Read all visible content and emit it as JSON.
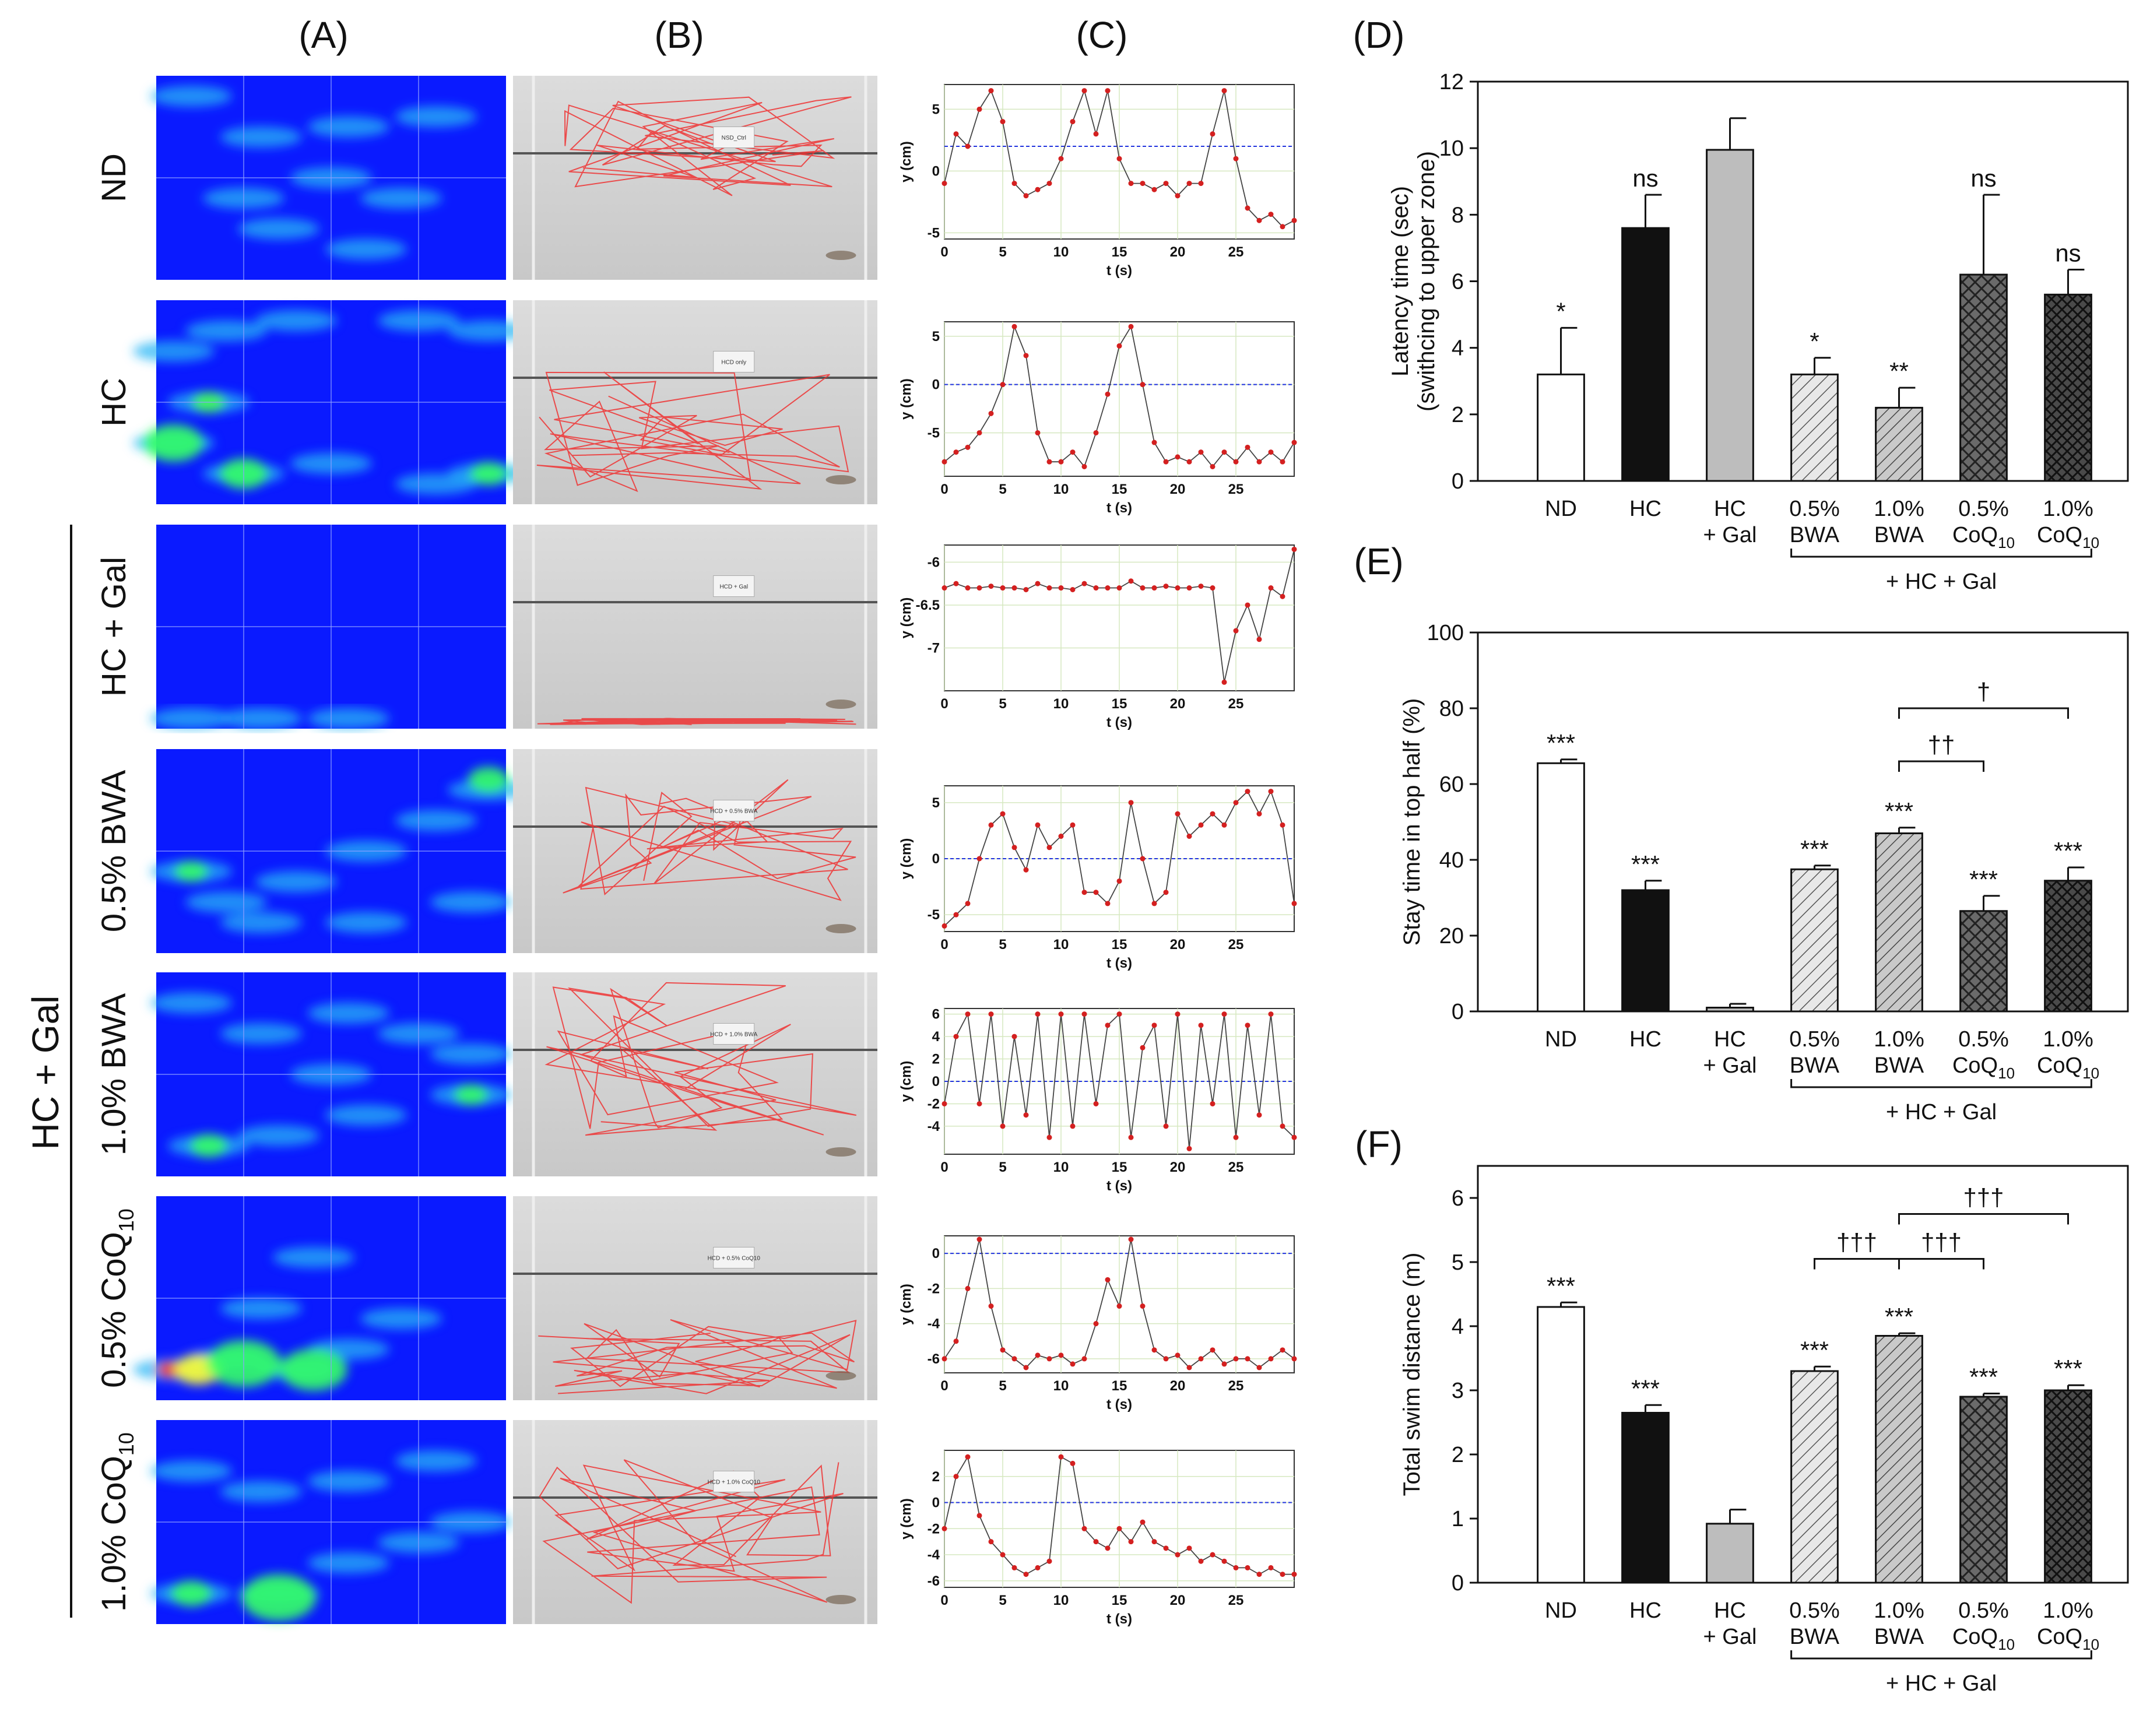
{
  "panel_labels": [
    "(A)",
    "(B)",
    "(C)",
    "(D)",
    "(E)",
    "(F)"
  ],
  "rows": [
    {
      "label": "ND",
      "sub": ""
    },
    {
      "label": "HC",
      "sub": ""
    },
    {
      "label": "HC + Gal",
      "sub": ""
    },
    {
      "label": "0.5% BWA",
      "sub": ""
    },
    {
      "label": "1.0% BWA",
      "sub": ""
    },
    {
      "label": "0.5% CoQ",
      "sub": "10"
    },
    {
      "label": "1.0% CoQ",
      "sub": "10"
    }
  ],
  "group_label": "HC + Gal",
  "tank_labels": [
    "NSD_Ctrl",
    "HCD only",
    "HCD + Gal",
    "HCD + 0.5% BWA",
    "HCD + 1.0% BWA",
    "HCD + 0.5% CoQ10",
    "HCD + 1.0% CoQ10"
  ],
  "trace_x_label": "t (s)",
  "trace_y_label": "y (cm)",
  "colors": {
    "heatmap_bg": "#0a1aff",
    "trace_point": "#d42020",
    "trace_ref": "#2233dd",
    "bar_nd": "#ffffff",
    "bar_hc": "#111111",
    "bar_hcgal": "#bdbdbd",
    "bar_bwa": "#e4e4e4",
    "bar_coq": "#5a5a5a"
  },
  "chart_data": [
    {
      "id": "D",
      "type": "bar",
      "ylabel": "Latency time (sec)",
      "ylabel2": "(swithcing to upper zone)",
      "ylim": [
        0,
        12
      ],
      "yticks": [
        0,
        2,
        4,
        6,
        8,
        10,
        12
      ],
      "categories": [
        "ND",
        "HC",
        "HC + Gal",
        "0.5% BWA",
        "1.0% BWA",
        "0.5% CoQ10",
        "1.0% CoQ10"
      ],
      "values": [
        3.2,
        7.6,
        9.95,
        3.2,
        2.2,
        6.2,
        5.6
      ],
      "errors": [
        1.4,
        1.0,
        0.95,
        0.5,
        0.6,
        2.4,
        0.75
      ],
      "significance": [
        "*",
        "ns",
        "",
        "*",
        "**",
        "ns",
        "ns"
      ],
      "group_bracket": "+ HC + Gal",
      "comparisons": []
    },
    {
      "id": "E",
      "type": "bar",
      "ylabel": "Stay time in top half (%)",
      "ylim": [
        0,
        100
      ],
      "yticks": [
        0,
        20,
        40,
        60,
        80,
        100
      ],
      "categories": [
        "ND",
        "HC",
        "HC + Gal",
        "0.5% BWA",
        "1.0% BWA",
        "0.5% CoQ10",
        "1.0% CoQ10"
      ],
      "values": [
        65.5,
        32,
        1,
        37.5,
        47,
        26.5,
        34.5
      ],
      "errors": [
        1,
        2.5,
        1,
        1,
        1.5,
        4,
        3.5
      ],
      "significance": [
        "***",
        "***",
        "",
        "***",
        "***",
        "***",
        "***"
      ],
      "group_bracket": "+ HC + Gal",
      "comparisons": [
        {
          "from": 4,
          "to": 6,
          "label": "†",
          "y": 80
        },
        {
          "from": 4,
          "to": 5,
          "label": "††",
          "y": 66
        }
      ]
    },
    {
      "id": "F",
      "type": "bar",
      "ylabel": "Total swim distance (m)",
      "ylim": [
        0,
        6.5
      ],
      "yticks": [
        0,
        1,
        2,
        3,
        4,
        5,
        6
      ],
      "categories": [
        "ND",
        "HC",
        "HC + Gal",
        "0.5% BWA",
        "1.0% BWA",
        "0.5% CoQ10",
        "1.0% CoQ10"
      ],
      "values": [
        4.3,
        2.65,
        0.92,
        3.3,
        3.85,
        2.9,
        3.0
      ],
      "errors": [
        0.07,
        0.12,
        0.22,
        0.07,
        0.04,
        0.05,
        0.08
      ],
      "significance": [
        "***",
        "***",
        "",
        "***",
        "***",
        "***",
        "***"
      ],
      "group_bracket": "+ HC + Gal",
      "comparisons": [
        {
          "from": 4,
          "to": 6,
          "label": "†††",
          "y": 5.75
        },
        {
          "from": 3,
          "to": 4,
          "label": "†††",
          "y": 5.05
        },
        {
          "from": 4,
          "to": 5,
          "label": "†††",
          "y": 5.05
        }
      ]
    },
    {
      "id": "C1",
      "type": "line",
      "xlabel": "t (s)",
      "ylabel": "y (cm)",
      "xlim": [
        0,
        30
      ],
      "ylim": [
        -5.5,
        7
      ],
      "xticks": [
        0,
        5,
        10,
        15,
        20,
        25
      ],
      "yticks": [
        -5,
        0,
        5
      ],
      "ref": 2,
      "x": [
        0,
        1,
        2,
        3,
        4,
        5,
        6,
        7,
        8,
        9,
        10,
        11,
        12,
        13,
        14,
        15,
        16,
        17,
        18,
        19,
        20,
        21,
        22,
        23,
        24,
        25,
        26,
        27,
        28,
        29,
        30
      ],
      "y": [
        -1,
        3,
        2,
        5,
        6.5,
        4,
        -1,
        -2,
        -1.5,
        -1,
        1,
        4,
        6.5,
        3,
        6.5,
        1,
        -1,
        -1,
        -1.5,
        -1,
        -2,
        -1,
        -1,
        3,
        6.5,
        1,
        -3,
        -4,
        -3.5,
        -4.5,
        -4
      ]
    },
    {
      "id": "C2",
      "type": "line",
      "xlabel": "t (s)",
      "ylabel": "y (cm)",
      "xlim": [
        0,
        30
      ],
      "ylim": [
        -9.5,
        6.5
      ],
      "xticks": [
        0,
        5,
        10,
        15,
        20,
        25
      ],
      "yticks": [
        -5,
        0,
        5
      ],
      "ref": 0,
      "x": [
        0,
        1,
        2,
        3,
        4,
        5,
        6,
        7,
        8,
        9,
        10,
        11,
        12,
        13,
        14,
        15,
        16,
        17,
        18,
        19,
        20,
        21,
        22,
        23,
        24,
        25,
        26,
        27,
        28,
        29,
        30
      ],
      "y": [
        -8,
        -7,
        -6.5,
        -5,
        -3,
        0,
        6,
        3,
        -5,
        -8,
        -8,
        -7,
        -8.5,
        -5,
        -1,
        4,
        6,
        0,
        -6,
        -8,
        -7.5,
        -8,
        -7,
        -8.5,
        -7,
        -8,
        -6.5,
        -8,
        -7,
        -8,
        -6
      ]
    },
    {
      "id": "C3",
      "type": "line",
      "xlabel": "t (s)",
      "ylabel": "y (cm)",
      "xlim": [
        0,
        30
      ],
      "ylim": [
        -7.5,
        -5.8
      ],
      "xticks": [
        0,
        5,
        10,
        15,
        20,
        25
      ],
      "yticks": [
        -7,
        -6.5,
        -6
      ],
      "ref": null,
      "x": [
        0,
        1,
        2,
        3,
        4,
        5,
        6,
        7,
        8,
        9,
        10,
        11,
        12,
        13,
        14,
        15,
        16,
        17,
        18,
        19,
        20,
        21,
        22,
        23,
        24,
        25,
        26,
        27,
        28,
        29,
        30
      ],
      "y": [
        -6.3,
        -6.25,
        -6.3,
        -6.3,
        -6.28,
        -6.3,
        -6.3,
        -6.32,
        -6.25,
        -6.3,
        -6.3,
        -6.32,
        -6.25,
        -6.3,
        -6.3,
        -6.3,
        -6.22,
        -6.3,
        -6.3,
        -6.28,
        -6.3,
        -6.3,
        -6.28,
        -6.3,
        -7.4,
        -6.8,
        -6.5,
        -6.9,
        -6.3,
        -6.4,
        -5.85
      ]
    },
    {
      "id": "C4",
      "type": "line",
      "xlabel": "t (s)",
      "ylabel": "y (cm)",
      "xlim": [
        0,
        30
      ],
      "ylim": [
        -6.5,
        6.5
      ],
      "xticks": [
        0,
        5,
        10,
        15,
        20,
        25
      ],
      "yticks": [
        -5,
        0,
        5
      ],
      "ref": 0,
      "x": [
        0,
        1,
        2,
        3,
        4,
        5,
        6,
        7,
        8,
        9,
        10,
        11,
        12,
        13,
        14,
        15,
        16,
        17,
        18,
        19,
        20,
        21,
        22,
        23,
        24,
        25,
        26,
        27,
        28,
        29,
        30
      ],
      "y": [
        -6,
        -5,
        -4,
        0,
        3,
        4,
        1,
        -1,
        3,
        1,
        2,
        3,
        -3,
        -3,
        -4,
        -2,
        5,
        0,
        -4,
        -3,
        4,
        2,
        3,
        4,
        3,
        5,
        6,
        4,
        6,
        3,
        -4
      ]
    },
    {
      "id": "C5",
      "type": "line",
      "xlabel": "t (s)",
      "ylabel": "y (cm)",
      "xlim": [
        0,
        30
      ],
      "ylim": [
        -6.5,
        6.5
      ],
      "xticks": [
        0,
        5,
        10,
        15,
        20,
        25
      ],
      "yticks": [
        -4,
        -2,
        0,
        2,
        4,
        6
      ],
      "ref": 0,
      "x": [
        0,
        1,
        2,
        3,
        4,
        5,
        6,
        7,
        8,
        9,
        10,
        11,
        12,
        13,
        14,
        15,
        16,
        17,
        18,
        19,
        20,
        21,
        22,
        23,
        24,
        25,
        26,
        27,
        28,
        29,
        30
      ],
      "y": [
        -2,
        4,
        6,
        -2,
        6,
        -4,
        4,
        -3,
        6,
        -5,
        6,
        -4,
        6,
        -2,
        5,
        6,
        -5,
        3,
        5,
        -4,
        6,
        -6,
        5,
        -2,
        6,
        -5,
        5,
        -3,
        6,
        -4,
        -5
      ]
    },
    {
      "id": "C6",
      "type": "line",
      "xlabel": "t (s)",
      "ylabel": "y (cm)",
      "xlim": [
        0,
        30
      ],
      "ylim": [
        -6.8,
        1
      ],
      "xticks": [
        0,
        5,
        10,
        15,
        20,
        25
      ],
      "yticks": [
        -6,
        -4,
        -2,
        0
      ],
      "ref": 0,
      "x": [
        0,
        1,
        2,
        3,
        4,
        5,
        6,
        7,
        8,
        9,
        10,
        11,
        12,
        13,
        14,
        15,
        16,
        17,
        18,
        19,
        20,
        21,
        22,
        23,
        24,
        25,
        26,
        27,
        28,
        29,
        30
      ],
      "y": [
        -6,
        -5,
        -2,
        0.8,
        -3,
        -5.5,
        -6,
        -6.5,
        -5.8,
        -6,
        -5.8,
        -6.3,
        -6,
        -4,
        -1.5,
        -3,
        0.8,
        -3,
        -5.5,
        -6,
        -5.8,
        -6.5,
        -6,
        -5.5,
        -6.3,
        -6,
        -6,
        -6.5,
        -6,
        -5.5,
        -6
      ]
    },
    {
      "id": "C7",
      "type": "line",
      "xlabel": "t (s)",
      "ylabel": "y (cm)",
      "xlim": [
        0,
        30
      ],
      "ylim": [
        -6.5,
        4
      ],
      "xticks": [
        0,
        5,
        10,
        15,
        20,
        25
      ],
      "yticks": [
        -6,
        -4,
        -2,
        0,
        2
      ],
      "ref": 0,
      "x": [
        0,
        1,
        2,
        3,
        4,
        5,
        6,
        7,
        8,
        9,
        10,
        11,
        12,
        13,
        14,
        15,
        16,
        17,
        18,
        19,
        20,
        21,
        22,
        23,
        24,
        25,
        26,
        27,
        28,
        29,
        30
      ],
      "y": [
        -2,
        2,
        3.5,
        -1,
        -3,
        -4,
        -5,
        -5.5,
        -5,
        -4.5,
        3.5,
        3,
        -2,
        -3,
        -3.5,
        -2,
        -3,
        -1.5,
        -3,
        -3.5,
        -4,
        -3.5,
        -4.5,
        -4,
        -4.5,
        -5,
        -5,
        -5.5,
        -5,
        -5.5,
        -5.5
      ]
    }
  ]
}
